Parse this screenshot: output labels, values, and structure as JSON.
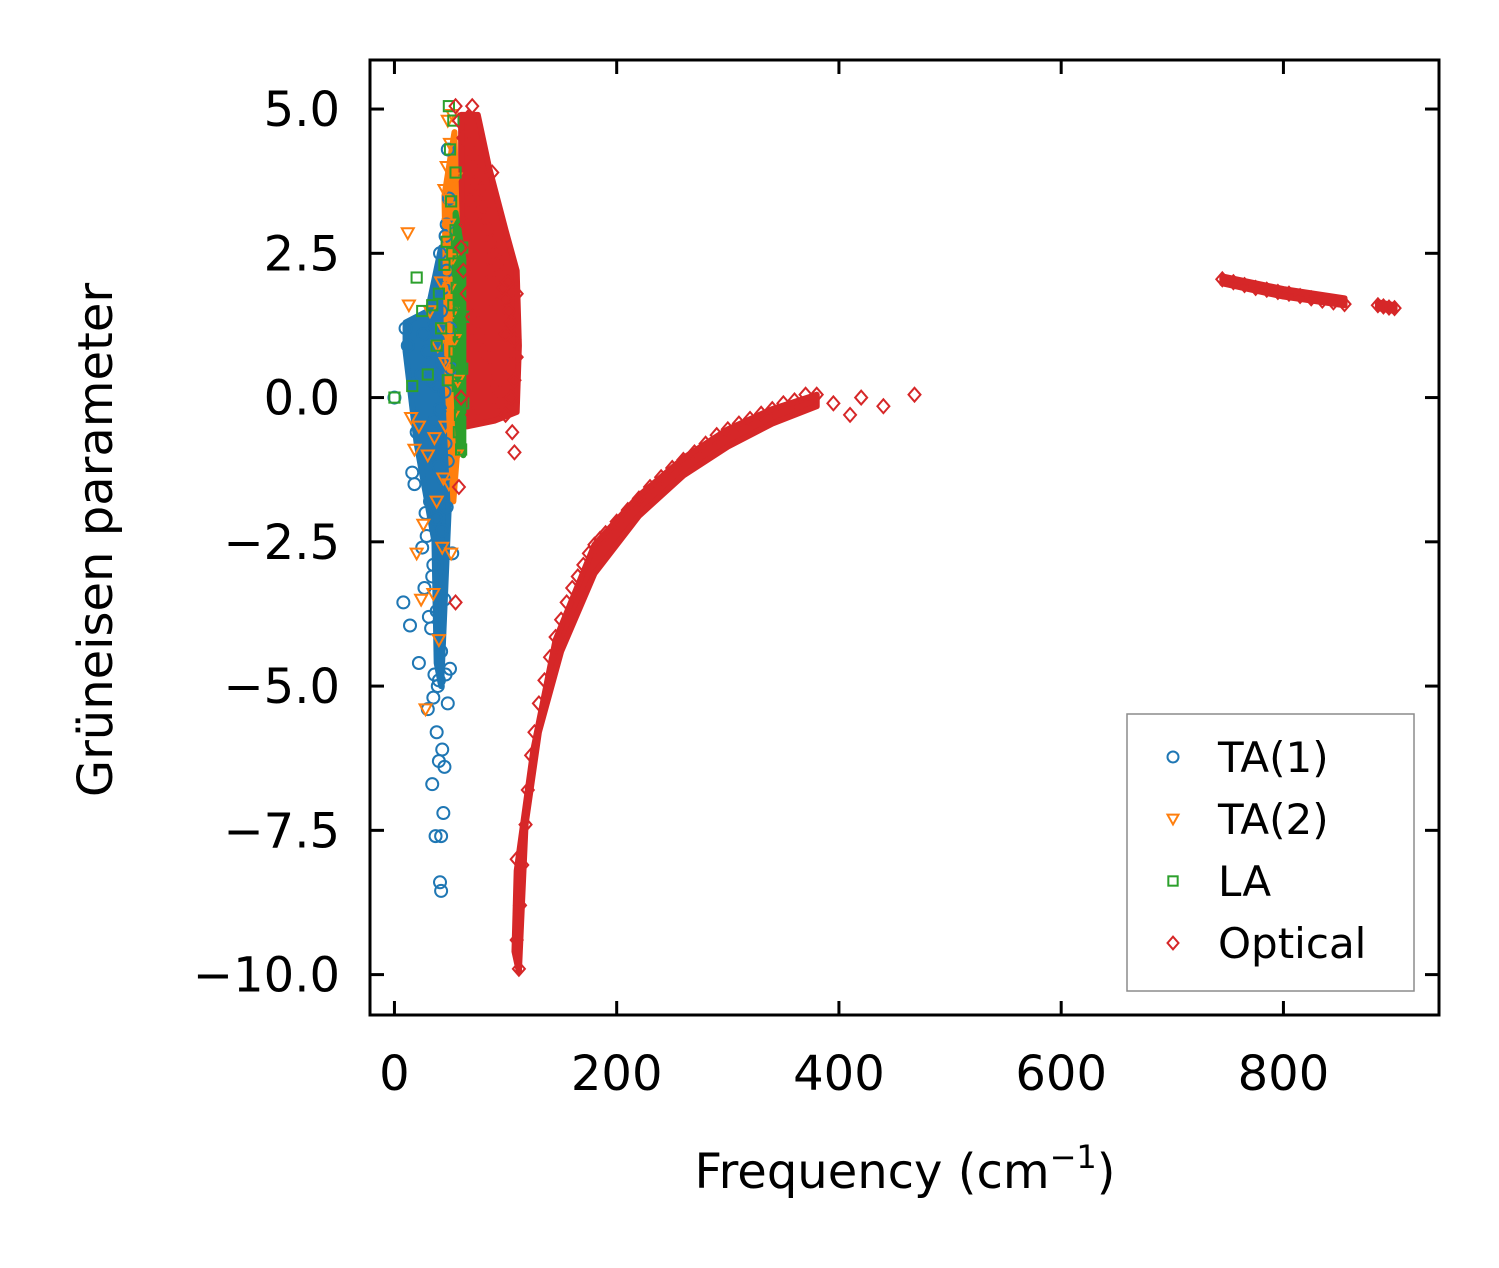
{
  "chart_data": {
    "type": "scatter",
    "title": "",
    "xlabel": "Frequency (cm",
    "xlabel_superscript": "−1",
    "xlabel_suffix": ")",
    "ylabel": "Grüneisen parameter",
    "xlim": [
      -22,
      940
    ],
    "ylim": [
      -10.7,
      5.85
    ],
    "xticks": [
      0,
      200,
      400,
      600,
      800
    ],
    "yticks": [
      5.0,
      2.5,
      0.0,
      -2.5,
      -5.0,
      -7.5,
      -10.0
    ],
    "ytick_labels": [
      "5.0",
      "2.5",
      "0.0",
      "−2.5",
      "−5.0",
      "−7.5",
      "−10.0"
    ],
    "legend_position": "lower-right",
    "series": [
      {
        "name": "TA(1)",
        "marker": "circle",
        "color": "#1f77b4",
        "points": [
          [
            0,
            0.0
          ],
          [
            8,
            -3.55
          ],
          [
            10,
            1.2
          ],
          [
            12,
            0.9
          ],
          [
            14,
            -3.95
          ],
          [
            16,
            -1.3
          ],
          [
            18,
            -1.5
          ],
          [
            20,
            -0.6
          ],
          [
            22,
            -4.6
          ],
          [
            24,
            0.4
          ],
          [
            25,
            -2.6
          ],
          [
            26,
            1.1
          ],
          [
            27,
            -3.3
          ],
          [
            28,
            -2.0
          ],
          [
            30,
            -5.4
          ],
          [
            30,
            0.8
          ],
          [
            32,
            -1.8
          ],
          [
            33,
            -4.0
          ],
          [
            34,
            -6.7
          ],
          [
            35,
            1.6
          ],
          [
            35,
            -2.9
          ],
          [
            36,
            -4.8
          ],
          [
            37,
            -7.6
          ],
          [
            38,
            0.2
          ],
          [
            38,
            -3.7
          ],
          [
            39,
            -5.0
          ],
          [
            40,
            -6.3
          ],
          [
            40,
            -1.2
          ],
          [
            41,
            -8.4
          ],
          [
            41,
            2.5
          ],
          [
            42,
            -8.55
          ],
          [
            42,
            -4.4
          ],
          [
            42,
            -7.6
          ],
          [
            43,
            -6.1
          ],
          [
            43,
            -2.3
          ],
          [
            44,
            -7.2
          ],
          [
            44,
            1.9
          ],
          [
            45,
            -6.4
          ],
          [
            45,
            -3.5
          ],
          [
            46,
            -4.8
          ],
          [
            46,
            -0.8
          ],
          [
            47,
            2.2
          ],
          [
            47,
            -1.9
          ],
          [
            48,
            4.3
          ],
          [
            48,
            -5.3
          ],
          [
            49,
            3.45
          ],
          [
            50,
            -4.7
          ],
          [
            50,
            1.2
          ],
          [
            51,
            0.5
          ],
          [
            52,
            -2.7
          ],
          [
            29,
            -2.4
          ],
          [
            31,
            -1.0
          ],
          [
            36,
            -0.4
          ],
          [
            39,
            1.0
          ],
          [
            37,
            -2.1
          ],
          [
            43,
            0.6
          ],
          [
            44,
            -1.4
          ],
          [
            34,
            -3.1
          ],
          [
            33,
            0.3
          ],
          [
            40,
            -4.9
          ],
          [
            38,
            -5.8
          ],
          [
            46,
            2.8
          ],
          [
            36,
            1.3
          ],
          [
            41,
            -0.2
          ],
          [
            45,
            0.1
          ],
          [
            48,
            -1.1
          ],
          [
            35,
            -5.2
          ],
          [
            31,
            -3.8
          ],
          [
            42,
            1.5
          ],
          [
            47,
            3.0
          ]
        ]
      },
      {
        "name": "TA(2)",
        "marker": "triangle-down",
        "color": "#ff7f0e",
        "points": [
          [
            12,
            2.85
          ],
          [
            13,
            1.6
          ],
          [
            15,
            -0.35
          ],
          [
            18,
            -0.9
          ],
          [
            20,
            -2.7
          ],
          [
            22,
            -0.5
          ],
          [
            24,
            -3.5
          ],
          [
            26,
            -2.2
          ],
          [
            28,
            -5.4
          ],
          [
            30,
            -1.0
          ],
          [
            32,
            1.5
          ],
          [
            35,
            -3.4
          ],
          [
            38,
            -1.8
          ],
          [
            40,
            -4.2
          ],
          [
            42,
            2.0
          ],
          [
            44,
            -1.4
          ],
          [
            45,
            3.6
          ],
          [
            46,
            0.6
          ],
          [
            47,
            4.0
          ],
          [
            48,
            4.8
          ],
          [
            49,
            3.0
          ],
          [
            50,
            1.9
          ],
          [
            51,
            -2.7
          ],
          [
            52,
            4.9
          ],
          [
            52,
            2.4
          ],
          [
            53,
            -0.3
          ],
          [
            54,
            1.0
          ],
          [
            55,
            3.8
          ],
          [
            56,
            -1.0
          ],
          [
            57,
            0.3
          ],
          [
            50,
            4.4
          ],
          [
            48,
            2.7
          ],
          [
            46,
            -0.5
          ],
          [
            44,
            1.2
          ],
          [
            43,
            -2.6
          ],
          [
            39,
            0.9
          ],
          [
            36,
            -0.7
          ],
          [
            53,
            1.5
          ],
          [
            51,
            3.3
          ],
          [
            49,
            -1.5
          ]
        ]
      },
      {
        "name": "LA",
        "marker": "square",
        "color": "#2ca02c",
        "points": [
          [
            0,
            0.0
          ],
          [
            16,
            0.2
          ],
          [
            20,
            2.08
          ],
          [
            25,
            1.5
          ],
          [
            30,
            0.4
          ],
          [
            34,
            1.6
          ],
          [
            38,
            0.9
          ],
          [
            40,
            1.8
          ],
          [
            42,
            1.2
          ],
          [
            45,
            2.3
          ],
          [
            47,
            2.7
          ],
          [
            48,
            0.3
          ],
          [
            49,
            5.05
          ],
          [
            50,
            4.3
          ],
          [
            51,
            3.4
          ],
          [
            52,
            2.5
          ],
          [
            53,
            1.6
          ],
          [
            54,
            0.8
          ],
          [
            55,
            2.9
          ],
          [
            56,
            1.9
          ],
          [
            57,
            0.2
          ],
          [
            58,
            -0.6
          ],
          [
            59,
            1.1
          ],
          [
            60,
            -0.9
          ],
          [
            61,
            0.5
          ],
          [
            62,
            1.4
          ],
          [
            55,
            3.9
          ],
          [
            53,
            4.8
          ],
          [
            57,
            2.2
          ],
          [
            59,
            -0.3
          ],
          [
            61,
            2.6
          ],
          [
            62,
            -0.1
          ],
          [
            58,
            1.5
          ],
          [
            56,
            0.6
          ]
        ]
      },
      {
        "name": "Optical",
        "marker": "diamond",
        "color": "#d62728",
        "points": [
          [
            55,
            5.05
          ],
          [
            58,
            4.8
          ],
          [
            62,
            4.5
          ],
          [
            66,
            4.85
          ],
          [
            70,
            5.05
          ],
          [
            72,
            4.2
          ],
          [
            75,
            3.9
          ],
          [
            78,
            3.6
          ],
          [
            80,
            3.3
          ],
          [
            82,
            3.1
          ],
          [
            85,
            2.9
          ],
          [
            88,
            2.7
          ],
          [
            90,
            2.5
          ],
          [
            92,
            2.3
          ],
          [
            95,
            2.1
          ],
          [
            98,
            1.9
          ],
          [
            100,
            1.7
          ],
          [
            103,
            1.5
          ],
          [
            105,
            1.3
          ],
          [
            108,
            1.0
          ],
          [
            110,
            0.7
          ],
          [
            108,
            0.3
          ],
          [
            105,
            0.0
          ],
          [
            100,
            -0.3
          ],
          [
            95,
            -0.1
          ],
          [
            90,
            0.2
          ],
          [
            85,
            0.5
          ],
          [
            80,
            0.8
          ],
          [
            75,
            1.1
          ],
          [
            70,
            1.4
          ],
          [
            65,
            1.8
          ],
          [
            62,
            2.2
          ],
          [
            60,
            2.6
          ],
          [
            64,
            3.0
          ],
          [
            68,
            3.4
          ],
          [
            72,
            3.7
          ],
          [
            76,
            3.2
          ],
          [
            84,
            2.2
          ],
          [
            92,
            1.6
          ],
          [
            100,
            1.1
          ],
          [
            106,
            -0.6
          ],
          [
            108,
            -0.95
          ],
          [
            58,
            -1.55
          ],
          [
            55,
            -3.55
          ],
          [
            88,
            3.9
          ],
          [
            96,
            2.6
          ],
          [
            102,
            2.0
          ],
          [
            110,
            1.8
          ],
          [
            60,
            0.0
          ],
          [
            70,
            -0.3
          ],
          [
            110,
            -8.0
          ],
          [
            112,
            -9.9
          ],
          [
            110,
            -9.4
          ],
          [
            113,
            -8.8
          ],
          [
            115,
            -8.1
          ],
          [
            118,
            -7.4
          ],
          [
            120,
            -6.8
          ],
          [
            123,
            -6.2
          ],
          [
            126,
            -5.8
          ],
          [
            130,
            -5.3
          ],
          [
            135,
            -4.9
          ],
          [
            140,
            -4.5
          ],
          [
            145,
            -4.15
          ],
          [
            150,
            -3.85
          ],
          [
            155,
            -3.55
          ],
          [
            160,
            -3.3
          ],
          [
            165,
            -3.1
          ],
          [
            170,
            -2.9
          ],
          [
            175,
            -2.7
          ],
          [
            180,
            -2.55
          ],
          [
            185,
            -2.45
          ],
          [
            190,
            -2.35
          ],
          [
            200,
            -2.15
          ],
          [
            210,
            -1.95
          ],
          [
            220,
            -1.75
          ],
          [
            230,
            -1.55
          ],
          [
            240,
            -1.38
          ],
          [
            250,
            -1.22
          ],
          [
            260,
            -1.08
          ],
          [
            270,
            -0.95
          ],
          [
            280,
            -0.8
          ],
          [
            290,
            -0.65
          ],
          [
            300,
            -0.55
          ],
          [
            310,
            -0.45
          ],
          [
            320,
            -0.37
          ],
          [
            330,
            -0.28
          ],
          [
            340,
            -0.2
          ],
          [
            350,
            -0.1
          ],
          [
            360,
            -0.05
          ],
          [
            370,
            0.05
          ],
          [
            380,
            0.05
          ],
          [
            395,
            -0.1
          ],
          [
            410,
            -0.3
          ],
          [
            420,
            0.0
          ],
          [
            440,
            -0.15
          ],
          [
            468,
            0.05
          ],
          [
            745,
            2.05
          ],
          [
            755,
            2.0
          ],
          [
            765,
            1.95
          ],
          [
            775,
            1.9
          ],
          [
            785,
            1.87
          ],
          [
            795,
            1.83
          ],
          [
            805,
            1.8
          ],
          [
            815,
            1.76
          ],
          [
            825,
            1.72
          ],
          [
            835,
            1.68
          ],
          [
            845,
            1.65
          ],
          [
            855,
            1.62
          ],
          [
            885,
            1.6
          ],
          [
            890,
            1.58
          ],
          [
            895,
            1.56
          ],
          [
            900,
            1.55
          ]
        ]
      }
    ]
  }
}
